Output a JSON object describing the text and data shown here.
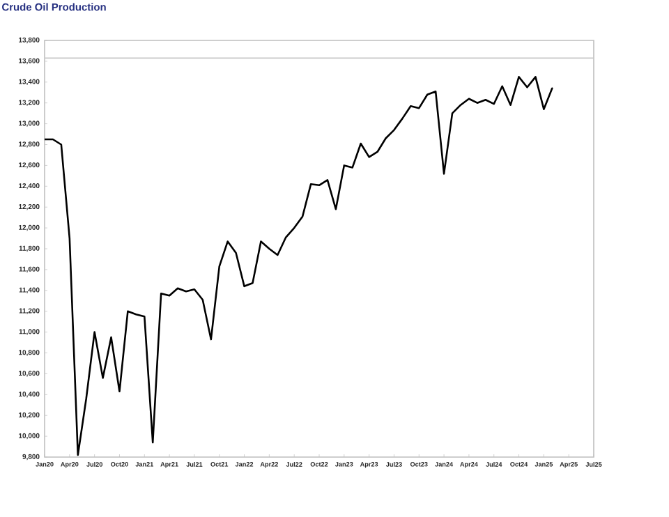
{
  "chart_data": {
    "type": "line",
    "title": "Crude Oil Production",
    "x": [
      "2020-01",
      "2020-02",
      "2020-03",
      "2020-04",
      "2020-05",
      "2020-06",
      "2020-07",
      "2020-08",
      "2020-09",
      "2020-10",
      "2020-11",
      "2020-12",
      "2021-01",
      "2021-02",
      "2021-03",
      "2021-04",
      "2021-05",
      "2021-06",
      "2021-07",
      "2021-08",
      "2021-09",
      "2021-10",
      "2021-11",
      "2021-12",
      "2022-01",
      "2022-02",
      "2022-03",
      "2022-04",
      "2022-05",
      "2022-06",
      "2022-07",
      "2022-08",
      "2022-09",
      "2022-10",
      "2022-11",
      "2022-12",
      "2023-01",
      "2023-02",
      "2023-03",
      "2023-04",
      "2023-05",
      "2023-06",
      "2023-07",
      "2023-08",
      "2023-09",
      "2023-10",
      "2023-11",
      "2023-12",
      "2024-01",
      "2024-02",
      "2024-03",
      "2024-04",
      "2024-05",
      "2024-06",
      "2024-07",
      "2024-08",
      "2024-09",
      "2024-10",
      "2024-11",
      "2024-12",
      "2025-01",
      "2025-02"
    ],
    "series": [
      {
        "color": "#000000",
        "values": [
          12850,
          12850,
          12800,
          11900,
          9820,
          10360,
          11000,
          10560,
          10950,
          10430,
          11200,
          11170,
          11150,
          9940,
          11370,
          11350,
          11420,
          11390,
          11410,
          11310,
          10930,
          11630,
          11870,
          11760,
          11440,
          11470,
          11870,
          11800,
          11740,
          11910,
          12000,
          12110,
          12420,
          12410,
          12460,
          12180,
          12600,
          12580,
          12810,
          12680,
          12730,
          12860,
          12940,
          13050,
          13170,
          13150,
          13280,
          13310,
          12520,
          13100,
          13180,
          13240,
          13200,
          13230,
          13190,
          13360,
          13180,
          13450,
          13350,
          13450,
          13140,
          13340
        ]
      }
    ],
    "xlim": [
      "2020-01",
      "2025-07"
    ],
    "xticks": [
      {
        "value": "2020-01",
        "label": "Jan20"
      },
      {
        "value": "2020-04",
        "label": "Apr20"
      },
      {
        "value": "2020-07",
        "label": "Jul20"
      },
      {
        "value": "2020-10",
        "label": "Oct20"
      },
      {
        "value": "2021-01",
        "label": "Jan21"
      },
      {
        "value": "2021-04",
        "label": "Apr21"
      },
      {
        "value": "2021-07",
        "label": "Jul21"
      },
      {
        "value": "2021-10",
        "label": "Oct21"
      },
      {
        "value": "2022-01",
        "label": "Jan22"
      },
      {
        "value": "2022-04",
        "label": "Apr22"
      },
      {
        "value": "2022-07",
        "label": "Jul22"
      },
      {
        "value": "2022-10",
        "label": "Oct22"
      },
      {
        "value": "2023-01",
        "label": "Jan23"
      },
      {
        "value": "2023-04",
        "label": "Apr23"
      },
      {
        "value": "2023-07",
        "label": "Jul23"
      },
      {
        "value": "2023-10",
        "label": "Oct23"
      },
      {
        "value": "2024-01",
        "label": "Jan24"
      },
      {
        "value": "2024-04",
        "label": "Apr24"
      },
      {
        "value": "2024-07",
        "label": "Jul24"
      },
      {
        "value": "2024-10",
        "label": "Oct24"
      },
      {
        "value": "2025-01",
        "label": "Jan25"
      },
      {
        "value": "2025-04",
        "label": "Apr25"
      },
      {
        "value": "2025-07",
        "label": "Jul25"
      }
    ],
    "ylim": [
      9800,
      13800
    ],
    "yticks": [
      {
        "value": 9800,
        "label": "9,800"
      },
      {
        "value": 10000,
        "label": "10,000"
      },
      {
        "value": 10200,
        "label": "10,200"
      },
      {
        "value": 10400,
        "label": "10,400"
      },
      {
        "value": 10600,
        "label": "10,600"
      },
      {
        "value": 10800,
        "label": "10,800"
      },
      {
        "value": 11000,
        "label": "11,000"
      },
      {
        "value": 11200,
        "label": "11,200"
      },
      {
        "value": 11400,
        "label": "11,400"
      },
      {
        "value": 11600,
        "label": "11,600"
      },
      {
        "value": 11800,
        "label": "11,800"
      },
      {
        "value": 12000,
        "label": "12,000"
      },
      {
        "value": 12200,
        "label": "12,200"
      },
      {
        "value": 12400,
        "label": "12,400"
      },
      {
        "value": 12600,
        "label": "12,600"
      },
      {
        "value": 12800,
        "label": "12,800"
      },
      {
        "value": 13000,
        "label": "13,000"
      },
      {
        "value": 13200,
        "label": "13,200"
      },
      {
        "value": 13400,
        "label": "13,400"
      },
      {
        "value": 13600,
        "label": "13,600"
      },
      {
        "value": 13800,
        "label": "13,800"
      }
    ],
    "ref_lines": [
      {
        "axis": "y",
        "value": 13630,
        "color": "#c8c8c8"
      }
    ],
    "marker": "none",
    "line_style": "solid"
  }
}
